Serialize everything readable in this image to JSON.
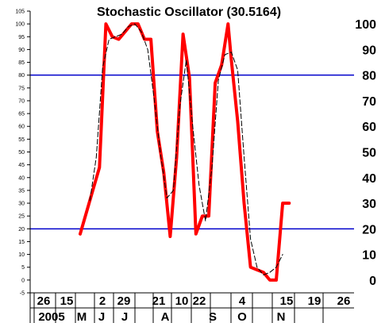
{
  "chart_data": {
    "type": "line",
    "title": "Stochastic Oscillator (30.5164)",
    "ylim": [
      -5,
      105
    ],
    "y_ticks_left": [
      105,
      100,
      95,
      90,
      85,
      80,
      75,
      70,
      65,
      60,
      55,
      50,
      45,
      40,
      35,
      30,
      25,
      20,
      15,
      10,
      5,
      0,
      -5
    ],
    "y_ticks_right": [
      100,
      90,
      80,
      70,
      60,
      50,
      40,
      30,
      20,
      10,
      0
    ],
    "reference_lines": [
      80,
      20
    ],
    "grid": false,
    "colors": {
      "k_line": "#ff0000",
      "d_line": "#000000",
      "reference": "#0000cc",
      "axis": "#000000"
    },
    "x_day_labels": [
      "26",
      "15",
      "2",
      "29",
      "21",
      "10",
      "22",
      "4",
      "15",
      "19",
      "26"
    ],
    "x_month_labels": [
      "2005",
      "M",
      "J",
      "J",
      "A",
      "S",
      "O",
      "N"
    ],
    "series": [
      {
        "style": "thick-red",
        "x": [
          0,
          6,
          8,
          10,
          12,
          14,
          16,
          18,
          20,
          22,
          24,
          26,
          28,
          30,
          32,
          34,
          36,
          38,
          40,
          42,
          44,
          46,
          47,
          49,
          51,
          53,
          55,
          57,
          59,
          61,
          63,
          65
        ],
        "y": [
          18,
          44,
          100,
          95,
          94,
          97,
          100,
          100,
          94,
          94,
          58,
          42,
          17,
          48,
          96,
          79,
          18,
          25,
          25,
          77,
          84,
          100,
          86,
          62,
          30,
          5,
          4,
          3,
          0,
          0,
          30,
          30
        ]
      },
      {
        "style": "thin-black-dashed",
        "x": [
          3,
          5,
          7,
          9,
          11,
          13,
          15,
          17,
          19,
          21,
          23,
          25,
          27,
          29,
          31,
          33,
          35,
          37,
          39,
          41,
          43,
          45,
          47,
          49,
          51,
          53,
          55,
          57,
          59,
          61,
          63
        ],
        "y": [
          31,
          48,
          83,
          94,
          95,
          96,
          99,
          100,
          97,
          90,
          71,
          49,
          32,
          35,
          68,
          86,
          60,
          37,
          23,
          44,
          78,
          88,
          89,
          82,
          48,
          16,
          5,
          2,
          3,
          5,
          10
        ]
      }
    ]
  }
}
